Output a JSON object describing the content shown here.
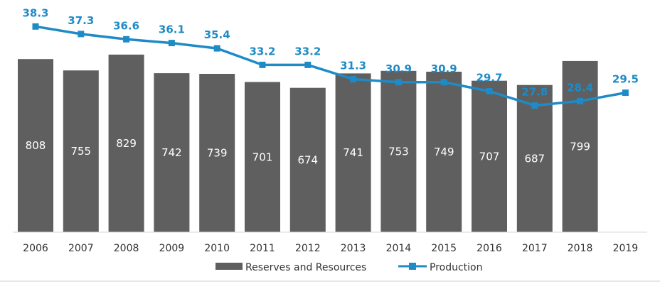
{
  "chart_data": {
    "type": "bar",
    "categories": [
      "2006",
      "2007",
      "2008",
      "2009",
      "2010",
      "2011",
      "2012",
      "2013",
      "2014",
      "2015",
      "2016",
      "2017",
      "2018",
      "2019"
    ],
    "series": [
      {
        "name": "Reserves and Resources",
        "kind": "bar",
        "color": "#5f5f5f",
        "values": [
          808,
          755,
          829,
          742,
          739,
          701,
          674,
          741,
          753,
          749,
          707,
          687,
          799,
          null
        ]
      },
      {
        "name": "Production",
        "kind": "line",
        "color": "#1f8bc6",
        "values": [
          38.3,
          37.3,
          36.6,
          36.1,
          35.4,
          33.2,
          33.2,
          31.3,
          30.9,
          30.9,
          29.7,
          27.8,
          28.4,
          29.5
        ]
      }
    ],
    "bar_value_labels": [
      "808",
      "755",
      "829",
      "742",
      "739",
      "701",
      "674",
      "741",
      "753",
      "749",
      "707",
      "687",
      "799",
      ""
    ],
    "line_value_labels": [
      "38.3",
      "37.3",
      "36.6",
      "36.1",
      "35.4",
      "33.2",
      "33.2",
      "31.3",
      "30.9",
      "30.9",
      "29.7",
      "27.8",
      "28.4",
      "29.5"
    ],
    "bar_axis_range": [
      0,
      1000
    ],
    "line_axis_range": [
      0,
      42
    ],
    "legend": {
      "position": "bottom",
      "bar_label": "Reserves and Resources",
      "line_label": "Production"
    },
    "grid": false,
    "title": "",
    "xlabel": "",
    "ylabel": ""
  }
}
